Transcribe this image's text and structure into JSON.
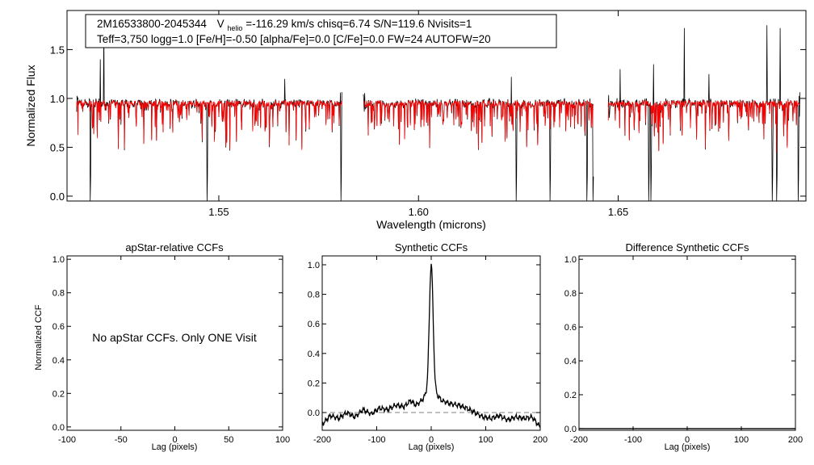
{
  "info": {
    "line1_object": "2M16533800-2045344",
    "line1_vlabel": "V",
    "line1_vsub": "helio",
    "line1_rest": "=-116.29 km/s  chisq=6.74  S/N=119.6  Nvisits=1",
    "line2": "Teff=3,750 logg=1.0 [Fe/H]=-0.50 [alpha/Fe]=0.0 [C/Fe]=0.0 FW=24 AUTOFW=20"
  },
  "colors": {
    "observed": "#000000",
    "model": "#ff0000",
    "zero_line": "#808080"
  },
  "chart_data": [
    {
      "id": "spectrum",
      "type": "line",
      "xlabel": "Wavelength (microns)",
      "ylabel": "Normalized Flux",
      "xlim": [
        1.512,
        1.697
      ],
      "ylim": [
        -0.05,
        1.9
      ],
      "xticks": [
        1.55,
        1.6,
        1.65
      ],
      "xtick_labels": [
        "1.55",
        "1.60",
        "1.65"
      ],
      "yticks": [
        0.0,
        0.5,
        1.0,
        1.5
      ],
      "ytick_labels": [
        "0.0",
        "0.5",
        "1.0",
        "1.5"
      ],
      "chip_ranges": [
        [
          1.5144,
          1.5808
        ],
        [
          1.5862,
          1.6438
        ],
        [
          1.6475,
          1.6955
        ]
      ],
      "continuum": 0.95,
      "series": [
        {
          "name": "Observed spectrum",
          "color": "#000000"
        },
        {
          "name": "Model spectrum",
          "color": "#ff0000"
        }
      ],
      "deep_absorption_lines": [
        1.5178,
        1.5471,
        1.5806,
        1.6244,
        1.6329,
        1.6422,
        1.6437,
        1.6576,
        1.6582,
        1.6886,
        1.6897,
        1.6951
      ],
      "emission_spikes": [
        [
          1.5212,
          1.7
        ],
        [
          1.5203,
          1.4
        ],
        [
          1.6665,
          1.72
        ],
        [
          1.6872,
          1.75
        ],
        [
          1.6905,
          1.72
        ],
        [
          1.6588,
          1.35
        ],
        [
          1.6727,
          1.25
        ],
        [
          1.6505,
          1.3
        ],
        [
          1.6232,
          1.22
        ],
        [
          1.5665,
          1.2
        ]
      ]
    },
    {
      "id": "apstar",
      "type": "line",
      "title": "apStar-relative CCFs",
      "xlabel": "Lag (pixels)",
      "ylabel": "Normalized CCF",
      "xlim": [
        -100,
        100
      ],
      "ylim": [
        -0.02,
        1.02
      ],
      "xticks": [
        -100,
        -50,
        0,
        50,
        100
      ],
      "xtick_labels": [
        "-100",
        "-50",
        "0",
        "50",
        "100"
      ],
      "yticks": [
        0.0,
        0.2,
        0.4,
        0.6,
        0.8,
        1.0
      ],
      "ytick_labels": [
        "0.0",
        "0.2",
        "0.4",
        "0.6",
        "0.8",
        "1.0"
      ],
      "annotation": "No apStar CCFs.  Only ONE Visit"
    },
    {
      "id": "synthetic",
      "type": "line",
      "title": "Synthetic CCFs",
      "xlabel": "Lag (pixels)",
      "xlim": [
        -200,
        200
      ],
      "ylim": [
        -0.12,
        1.06
      ],
      "xticks": [
        -200,
        -100,
        0,
        100,
        200
      ],
      "xtick_labels": [
        "-200",
        "-100",
        "0",
        "100",
        "200"
      ],
      "yticks": [
        0.0,
        0.2,
        0.4,
        0.6,
        0.8,
        1.0
      ],
      "ytick_labels": [
        "0.0",
        "0.2",
        "0.4",
        "0.6",
        "0.8",
        "1.0"
      ],
      "peak": {
        "lag": 0,
        "value": 1.0,
        "width": 3.5
      },
      "ccf_points": [
        [
          -200,
          -0.08
        ],
        [
          -185,
          -0.02
        ],
        [
          -170,
          -0.04
        ],
        [
          -155,
          0.0
        ],
        [
          -140,
          -0.03
        ],
        [
          -125,
          0.02
        ],
        [
          -110,
          -0.01
        ],
        [
          -95,
          0.03
        ],
        [
          -80,
          0.02
        ],
        [
          -65,
          0.05
        ],
        [
          -50,
          0.04
        ],
        [
          -38,
          0.08
        ],
        [
          -28,
          0.05
        ],
        [
          -18,
          0.08
        ],
        [
          -10,
          0.12
        ],
        [
          10,
          0.12
        ],
        [
          20,
          0.08
        ],
        [
          35,
          0.06
        ],
        [
          50,
          0.05
        ],
        [
          65,
          0.03
        ],
        [
          80,
          0.0
        ],
        [
          95,
          -0.03
        ],
        [
          110,
          -0.04
        ],
        [
          125,
          -0.02
        ],
        [
          140,
          -0.05
        ],
        [
          155,
          -0.03
        ],
        [
          170,
          -0.04
        ],
        [
          185,
          -0.03
        ],
        [
          200,
          -0.1
        ]
      ],
      "zero_line": 0.0
    },
    {
      "id": "difference",
      "type": "line",
      "title": "Difference Synthetic CCFs",
      "xlabel": "Lag (pixels)",
      "xlim": [
        -200,
        200
      ],
      "ylim": [
        -0.01,
        1.02
      ],
      "xticks": [
        -200,
        -100,
        0,
        100,
        200
      ],
      "xtick_labels": [
        "-200",
        "-100",
        "0",
        "100",
        "200"
      ],
      "yticks": [
        0.0,
        0.2,
        0.4,
        0.6,
        0.8,
        1.0
      ],
      "ytick_labels": [
        "0.0",
        "0.2",
        "0.4",
        "0.6",
        "0.8",
        "1.0"
      ],
      "line_value": 0.0
    }
  ]
}
